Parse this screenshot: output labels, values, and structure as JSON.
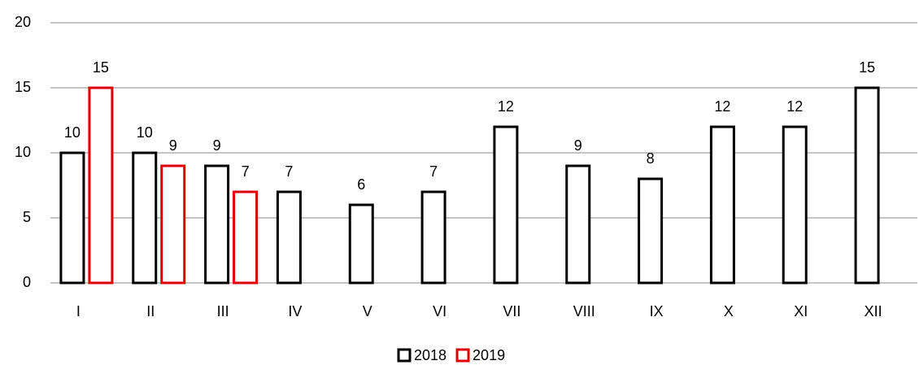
{
  "chart_data": {
    "type": "bar",
    "categories": [
      "I",
      "II",
      "III",
      "IV",
      "V",
      "VI",
      "VII",
      "VIII",
      "IX",
      "X",
      "XI",
      "XII"
    ],
    "series": [
      {
        "name": "2018",
        "color": "#000000",
        "values": [
          10,
          10,
          9,
          7,
          6,
          7,
          12,
          9,
          8,
          12,
          12,
          15
        ]
      },
      {
        "name": "2019",
        "color": "#e00000",
        "values": [
          15,
          9,
          7,
          null,
          null,
          null,
          null,
          null,
          null,
          null,
          null,
          null
        ]
      }
    ],
    "ylim": [
      0,
      20
    ],
    "yticks": [
      0,
      5,
      10,
      15,
      20
    ],
    "grid": true,
    "legend": "bottom"
  }
}
